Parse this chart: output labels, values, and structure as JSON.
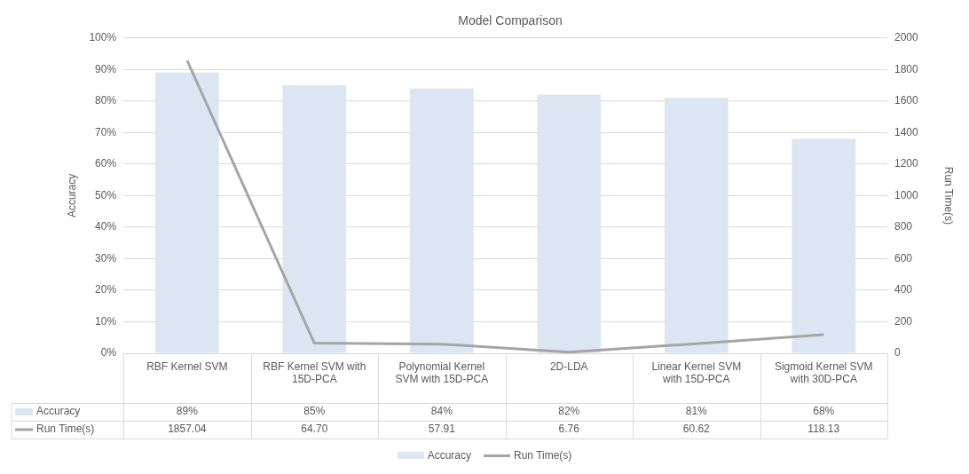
{
  "chart_data": {
    "type": "bar",
    "title": "Model Comparison",
    "ylabel": "Accuracy",
    "y2label": "Run Time(s)",
    "categories": [
      "RBF Kernel SVM",
      "RBF Kernel SVM with 15D-PCA",
      "Polynomial Kernel SVM with 15D-PCA",
      "2D-LDA",
      "Linear Kernel SVM with 15D-PCA",
      "Sigmoid Kernel SVM with 30D-PCA"
    ],
    "series": [
      {
        "name": "Accuracy",
        "color": "#dce6f2",
        "values": [
          89,
          85,
          84,
          82,
          81,
          68
        ],
        "value_labels": [
          "89%",
          "85%",
          "84%",
          "82%",
          "81%",
          "68%"
        ]
      },
      {
        "name": "Run Time(s)",
        "type": "line",
        "axis": "y2",
        "color": "#a5a5a5",
        "values": [
          1857.04,
          64.7,
          57.91,
          6.76,
          60.62,
          118.13
        ],
        "value_labels": [
          "1857.04",
          "64.70",
          "57.91",
          "6.76",
          "60.62",
          "118.13"
        ]
      }
    ],
    "ylim": [
      0,
      100
    ],
    "yticks": [
      {
        "value": 0,
        "label": "0%"
      },
      {
        "value": 10,
        "label": "10%"
      },
      {
        "value": 20,
        "label": "20%"
      },
      {
        "value": 30,
        "label": "30%"
      },
      {
        "value": 40,
        "label": "40%"
      },
      {
        "value": 50,
        "label": "50%"
      },
      {
        "value": 60,
        "label": "60%"
      },
      {
        "value": 70,
        "label": "70%"
      },
      {
        "value": 80,
        "label": "80%"
      },
      {
        "value": 90,
        "label": "90%"
      },
      {
        "value": 100,
        "label": "100%"
      }
    ],
    "y2lim": [
      0,
      2000
    ],
    "y2ticks": [
      0,
      200,
      400,
      600,
      800,
      1000,
      1200,
      1400,
      1600,
      1800,
      2000
    ],
    "grid": "y",
    "legend": "bottom"
  }
}
